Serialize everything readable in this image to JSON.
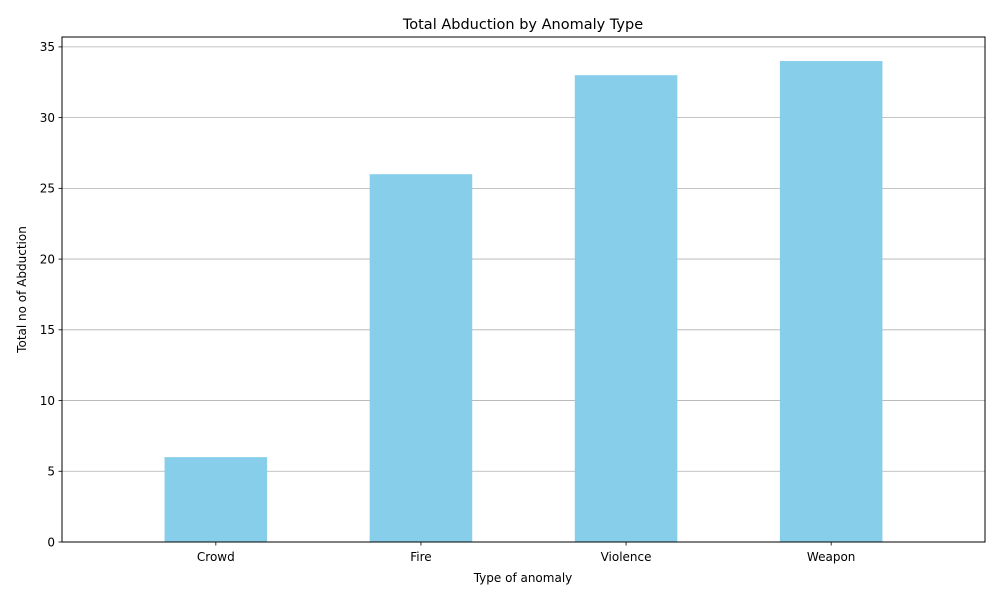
{
  "chart_data": {
    "type": "bar",
    "title": "Total Abduction by Anomaly Type",
    "xlabel": "Type of anomaly",
    "ylabel": "Total no of Abduction",
    "categories": [
      "Crowd",
      "Fire",
      "Violence",
      "Weapon"
    ],
    "values": [
      6,
      26,
      33,
      34
    ],
    "ylim": [
      0,
      35.7
    ],
    "yticks": [
      0,
      5,
      10,
      15,
      20,
      25,
      30,
      35
    ],
    "grid": "y-axis",
    "legend": "none",
    "bar_color": "#87ceeb",
    "grid_color": "#b0b0b0",
    "axis_color": "#000000"
  }
}
